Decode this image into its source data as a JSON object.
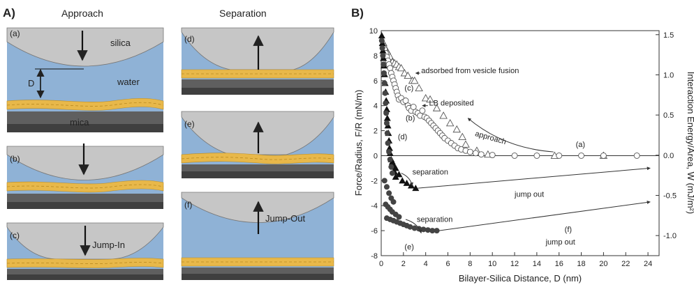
{
  "colors": {
    "silica": "#c6c6c6",
    "water": "#8fb2d6",
    "bilayer": "#e8b84a",
    "mica": "#5f5f5f",
    "mica_dark": "#3f3f3f",
    "filled_marker": "#444444"
  },
  "panel_a": {
    "label": "A)",
    "col1_title": "Approach",
    "col2_title": "Separation",
    "panels": [
      {
        "tag": "(a)",
        "silica_label": "silica",
        "water_label": "water",
        "mica_label": "mica",
        "gap_label": "D"
      },
      {
        "tag": "(b)"
      },
      {
        "tag": "(c)",
        "arrow_label": "Jump-In"
      },
      {
        "tag": "(d)"
      },
      {
        "tag": "(e)"
      },
      {
        "tag": "(f)",
        "arrow_label": "Jump-Out"
      }
    ]
  },
  "chart_data": {
    "type": "scatter",
    "panel_label": "B)",
    "xlabel": "Bilayer-Silica Distance, D (nm)",
    "ylabel": "Force/Radius, F/R (mN/m)",
    "y2label": "Interaction Energy/Area, W (mJ/m²)",
    "xlim": [
      0,
      25
    ],
    "ylim": [
      -8,
      10
    ],
    "y2lim": [
      -1.25,
      1.55
    ],
    "xticks": [
      0,
      2,
      4,
      6,
      8,
      10,
      12,
      14,
      16,
      18,
      20,
      22,
      24
    ],
    "yticks": [
      -8,
      -6,
      -4,
      -2,
      0,
      2,
      4,
      6,
      8,
      10
    ],
    "y2ticks": [
      "-1.0",
      "-0.5",
      "0.0",
      "0.5",
      "1.0",
      "1.5"
    ],
    "y2tick_values": [
      -1.0,
      -0.5,
      0.0,
      0.5,
      1.0,
      1.5
    ],
    "series": [
      {
        "marker": "open-triangle",
        "x": [
          0.2,
          0.3,
          0.5,
          0.6,
          0.8,
          1.0,
          1.2,
          1.4,
          1.6,
          1.8,
          2.1,
          2.4,
          2.8,
          3.0,
          3.4,
          4.0,
          4.4,
          5.0,
          5.6,
          6.2,
          6.8,
          7.3,
          7.6,
          8.6,
          9.6,
          15.6,
          20.0
        ],
        "y": [
          9.0,
          8.6,
          8.4,
          8.2,
          7.9,
          7.5,
          7.4,
          7.3,
          7.1,
          7.0,
          6.6,
          6.4,
          6.0,
          6.0,
          5.4,
          4.6,
          4.5,
          3.8,
          3.2,
          2.6,
          2.1,
          1.5,
          0.9,
          0.4,
          0.1,
          0.0,
          0.0
        ]
      },
      {
        "marker": "open-circle",
        "x": [
          0.2,
          0.3,
          0.4,
          0.5,
          0.6,
          0.7,
          0.8,
          0.9,
          1.0,
          1.1,
          1.2,
          1.3,
          1.4,
          1.5,
          1.6,
          1.8,
          2.0,
          2.2,
          2.4,
          2.5,
          2.7,
          2.9,
          3.1,
          3.3,
          3.5,
          3.7,
          3.9,
          4.1,
          4.3,
          4.5,
          4.7,
          4.9,
          5.1,
          5.3,
          5.5,
          5.7,
          6.0,
          6.3,
          6.6,
          6.9,
          7.2,
          7.6,
          8.0,
          8.5,
          9.0,
          10.0,
          12.0,
          14.0,
          16.0,
          18.0,
          20.0,
          23.0
        ],
        "y": [
          8.8,
          8.5,
          8.2,
          7.9,
          7.6,
          7.3,
          7.0,
          6.6,
          6.3,
          6.0,
          5.7,
          5.4,
          5.1,
          4.8,
          4.5,
          4.6,
          4.3,
          4.4,
          4.0,
          3.8,
          3.6,
          3.9,
          3.5,
          3.4,
          3.2,
          3.6,
          3.1,
          3.0,
          2.8,
          2.6,
          2.4,
          2.2,
          2.0,
          1.8,
          1.6,
          1.4,
          1.2,
          1.0,
          0.8,
          0.6,
          0.5,
          0.4,
          0.3,
          0.2,
          0.1,
          0.05,
          0.0,
          0.0,
          0.0,
          0.0,
          0.0,
          0.0
        ]
      },
      {
        "marker": "filled-triangle",
        "x": [
          0.05,
          0.1,
          0.15,
          0.2,
          0.25,
          0.3,
          0.35,
          0.4,
          0.45,
          0.5,
          0.55,
          0.6,
          0.65,
          0.7,
          0.75,
          0.8,
          0.9,
          1.0,
          1.1,
          1.2,
          1.3,
          1.0,
          1.3,
          1.6,
          1.9,
          2.3,
          2.7,
          3.1
        ],
        "y": [
          9.6,
          9.0,
          8.4,
          7.8,
          7.2,
          6.5,
          5.8,
          5.1,
          4.4,
          3.7,
          3.0,
          2.4,
          1.8,
          1.2,
          0.6,
          0.2,
          -0.3,
          -0.6,
          -0.9,
          -1.3,
          -1.7,
          -0.5,
          -1.0,
          -1.5,
          -2.0,
          -2.2,
          -2.4,
          -2.6
        ]
      },
      {
        "marker": "filled-circle",
        "x": [
          0.05,
          0.1,
          0.15,
          0.2,
          0.25,
          0.3,
          0.35,
          0.4,
          0.45,
          0.5,
          0.55,
          0.6,
          0.7,
          0.8,
          0.9,
          1.0,
          0.3,
          0.5,
          0.7,
          0.9,
          1.1,
          0.4,
          0.6,
          0.8,
          1.0,
          1.3,
          1.6,
          0.5,
          0.8,
          1.1,
          1.4,
          1.7,
          2.0,
          2.3,
          2.6,
          3.0,
          3.4,
          3.8,
          4.2,
          4.6,
          5.0
        ],
        "y": [
          9.2,
          8.6,
          8.0,
          7.3,
          6.6,
          5.8,
          5.0,
          4.2,
          3.4,
          2.6,
          1.8,
          1.0,
          0.3,
          -0.3,
          -0.9,
          -1.4,
          -2.0,
          -2.5,
          -3.0,
          -3.4,
          -3.7,
          -3.9,
          -4.1,
          -4.3,
          -4.5,
          -4.7,
          -4.9,
          -5.0,
          -5.1,
          -5.2,
          -5.3,
          -5.4,
          -5.5,
          -5.6,
          -5.7,
          -5.8,
          -5.85,
          -5.9,
          -5.95,
          -6.0,
          -6.0
        ]
      }
    ],
    "annotations": [
      {
        "text": "adsorbed from vesicle fusion",
        "x": 3.6,
        "y": 6.6
      },
      {
        "text": "LB deposited",
        "x": 4.3,
        "y": 4.0
      },
      {
        "text": "(c)",
        "x": 2.1,
        "y": 5.2
      },
      {
        "text": "(b)",
        "x": 2.2,
        "y": 2.8
      },
      {
        "text": "(d)",
        "x": 1.5,
        "y": 1.3
      },
      {
        "text": "approach",
        "x": 8.4,
        "y": 1.6
      },
      {
        "text": "(a)",
        "x": 17.5,
        "y": 0.7
      },
      {
        "text": "separation",
        "x": 2.8,
        "y": -1.5
      },
      {
        "text": "jump out",
        "x": 12.0,
        "y": -3.3
      },
      {
        "text": "separation",
        "x": 3.2,
        "y": -5.3
      },
      {
        "text": "(f)",
        "x": 16.5,
        "y": -6.1
      },
      {
        "text": "jump out",
        "x": 14.8,
        "y": -7.1
      },
      {
        "text": "(e)",
        "x": 2.1,
        "y": -7.5
      }
    ]
  }
}
